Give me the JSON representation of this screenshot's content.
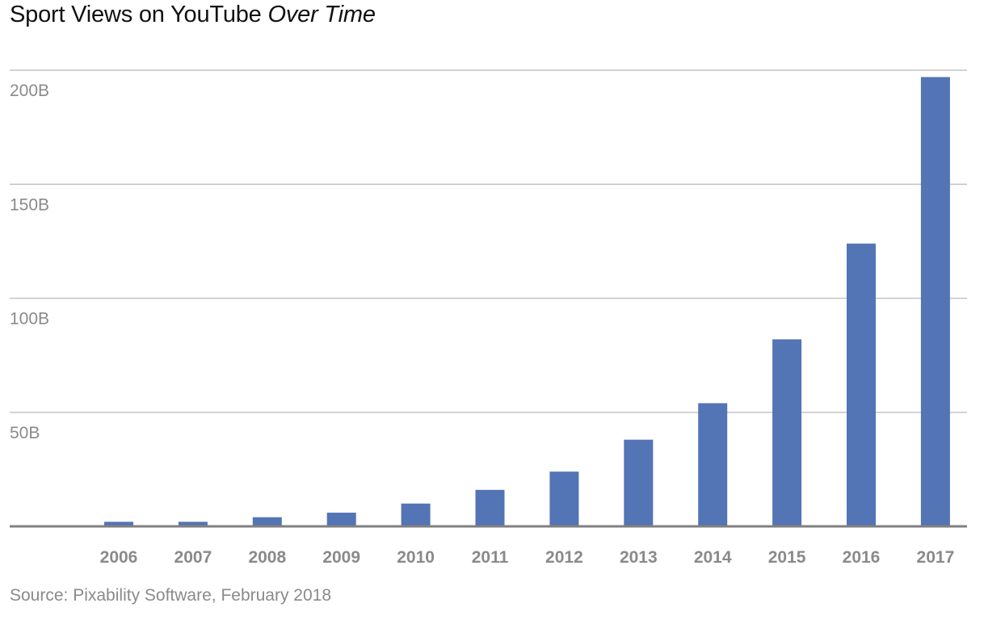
{
  "title": {
    "main": "Sport Views on YouTube",
    "italic": "Over Time"
  },
  "source": "Source: Pixability Software, February 2018",
  "colors": {
    "bar": "#5374b5",
    "gridline": "#c4c4c4",
    "baseline": "#808080",
    "tick_label": "#8a8a8a",
    "title": "#111111"
  },
  "chart_data": {
    "type": "bar",
    "categories": [
      "2006",
      "2007",
      "2008",
      "2009",
      "2010",
      "2011",
      "2012",
      "2013",
      "2014",
      "2015",
      "2016",
      "2017"
    ],
    "values": [
      2,
      2,
      4,
      6,
      10,
      16,
      24,
      38,
      54,
      82,
      124,
      197
    ],
    "ylim": [
      0,
      200
    ],
    "y_ticks": [
      50,
      100,
      150,
      200
    ],
    "y_tick_labels": [
      "50B",
      "100B",
      "150B",
      "200B"
    ],
    "unit": "B",
    "grid": true,
    "legend": "none"
  }
}
